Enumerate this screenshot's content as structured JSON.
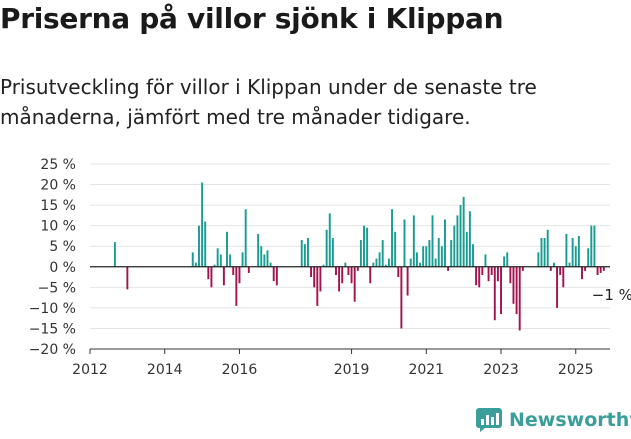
{
  "title": "Priserna på villor sjönk i Klippan",
  "subtitle": "Prisutveckling för villor i Klippan under de senaste tre månaderna, jämfört med tre månader tidigare.",
  "brand": "Newsworthy",
  "colors": {
    "positive": "#1a9c92",
    "negative": "#a3144e",
    "logo": "#3a9e9a"
  },
  "chart_data": {
    "type": "bar",
    "y_unit": "%",
    "ylim": [
      -20,
      25
    ],
    "yticks": [
      25,
      20,
      15,
      10,
      5,
      0,
      -5,
      -10,
      -15,
      -20
    ],
    "ytick_labels": [
      "25 %",
      "20 %",
      "15 %",
      "10 %",
      "5 %",
      "0 %",
      "−5 %",
      "−10 %",
      "−15 %",
      "−20 %"
    ],
    "xlim": [
      "2012-01",
      "2025-12"
    ],
    "xticks": [
      "2012",
      "2014",
      "2016",
      "2019",
      "2021",
      "2023",
      "2025"
    ],
    "annotation": "−1 %",
    "bars": [
      {
        "x": "2012-09",
        "y": 6
      },
      {
        "x": "2013-01",
        "y": -5.5
      },
      {
        "x": "2014-10",
        "y": 3.5
      },
      {
        "x": "2014-11",
        "y": 1
      },
      {
        "x": "2014-12",
        "y": 10
      },
      {
        "x": "2015-01",
        "y": 20.5
      },
      {
        "x": "2015-02",
        "y": 11
      },
      {
        "x": "2015-03",
        "y": -3
      },
      {
        "x": "2015-04",
        "y": -5
      },
      {
        "x": "2015-05",
        "y": 0.5
      },
      {
        "x": "2015-06",
        "y": 4.5
      },
      {
        "x": "2015-07",
        "y": 3
      },
      {
        "x": "2015-08",
        "y": -4.5
      },
      {
        "x": "2015-09",
        "y": 8.5
      },
      {
        "x": "2015-10",
        "y": 3
      },
      {
        "x": "2015-11",
        "y": -2
      },
      {
        "x": "2015-12",
        "y": -9.5
      },
      {
        "x": "2016-01",
        "y": -4
      },
      {
        "x": "2016-02",
        "y": 3.5
      },
      {
        "x": "2016-03",
        "y": 14
      },
      {
        "x": "2016-04",
        "y": -1.5
      },
      {
        "x": "2016-07",
        "y": 8
      },
      {
        "x": "2016-08",
        "y": 5
      },
      {
        "x": "2016-09",
        "y": 3
      },
      {
        "x": "2016-10",
        "y": 4
      },
      {
        "x": "2016-11",
        "y": 1
      },
      {
        "x": "2016-12",
        "y": -3.5
      },
      {
        "x": "2017-01",
        "y": -4.5
      },
      {
        "x": "2017-09",
        "y": 6.5
      },
      {
        "x": "2017-10",
        "y": 5.5
      },
      {
        "x": "2017-11",
        "y": 7
      },
      {
        "x": "2017-12",
        "y": -2.5
      },
      {
        "x": "2018-01",
        "y": -5
      },
      {
        "x": "2018-02",
        "y": -9.5
      },
      {
        "x": "2018-03",
        "y": -6
      },
      {
        "x": "2018-04",
        "y": 0.5
      },
      {
        "x": "2018-05",
        "y": 9
      },
      {
        "x": "2018-06",
        "y": 13
      },
      {
        "x": "2018-07",
        "y": 7
      },
      {
        "x": "2018-08",
        "y": -2
      },
      {
        "x": "2018-09",
        "y": -6
      },
      {
        "x": "2018-10",
        "y": -4
      },
      {
        "x": "2018-11",
        "y": 1
      },
      {
        "x": "2018-12",
        "y": -2
      },
      {
        "x": "2019-01",
        "y": -4
      },
      {
        "x": "2019-02",
        "y": -8.5
      },
      {
        "x": "2019-03",
        "y": -1
      },
      {
        "x": "2019-04",
        "y": 6.5
      },
      {
        "x": "2019-05",
        "y": 10
      },
      {
        "x": "2019-06",
        "y": 9.5
      },
      {
        "x": "2019-07",
        "y": -4
      },
      {
        "x": "2019-08",
        "y": 1
      },
      {
        "x": "2019-09",
        "y": 2
      },
      {
        "x": "2019-10",
        "y": 3.5
      },
      {
        "x": "2019-11",
        "y": 6.5
      },
      {
        "x": "2019-12",
        "y": 0.5
      },
      {
        "x": "2020-01",
        "y": 2
      },
      {
        "x": "2020-02",
        "y": 14
      },
      {
        "x": "2020-03",
        "y": 8.5
      },
      {
        "x": "2020-04",
        "y": -2.5
      },
      {
        "x": "2020-05",
        "y": -15
      },
      {
        "x": "2020-06",
        "y": 11.5
      },
      {
        "x": "2020-07",
        "y": -7
      },
      {
        "x": "2020-08",
        "y": 2
      },
      {
        "x": "2020-09",
        "y": 12.5
      },
      {
        "x": "2020-10",
        "y": 3.5
      },
      {
        "x": "2020-11",
        "y": 1
      },
      {
        "x": "2020-12",
        "y": 5
      },
      {
        "x": "2021-01",
        "y": 5
      },
      {
        "x": "2021-02",
        "y": 6.5
      },
      {
        "x": "2021-03",
        "y": 12.5
      },
      {
        "x": "2021-04",
        "y": 2
      },
      {
        "x": "2021-05",
        "y": 7
      },
      {
        "x": "2021-06",
        "y": 5
      },
      {
        "x": "2021-07",
        "y": 11.5
      },
      {
        "x": "2021-08",
        "y": -1
      },
      {
        "x": "2021-09",
        "y": 6.5
      },
      {
        "x": "2021-10",
        "y": 10
      },
      {
        "x": "2021-11",
        "y": 12.5
      },
      {
        "x": "2021-12",
        "y": 15
      },
      {
        "x": "2022-01",
        "y": 17
      },
      {
        "x": "2022-02",
        "y": 8.5
      },
      {
        "x": "2022-03",
        "y": 13.5
      },
      {
        "x": "2022-04",
        "y": 5.5
      },
      {
        "x": "2022-05",
        "y": -4.5
      },
      {
        "x": "2022-06",
        "y": -5
      },
      {
        "x": "2022-07",
        "y": -2
      },
      {
        "x": "2022-08",
        "y": 3
      },
      {
        "x": "2022-09",
        "y": -3.5
      },
      {
        "x": "2022-10",
        "y": -2
      },
      {
        "x": "2022-11",
        "y": -13
      },
      {
        "x": "2022-12",
        "y": -3.5
      },
      {
        "x": "2023-01",
        "y": -11.5
      },
      {
        "x": "2023-02",
        "y": 2.5
      },
      {
        "x": "2023-03",
        "y": 3.5
      },
      {
        "x": "2023-04",
        "y": -4
      },
      {
        "x": "2023-05",
        "y": -9
      },
      {
        "x": "2023-06",
        "y": -11.5
      },
      {
        "x": "2023-07",
        "y": -15.5
      },
      {
        "x": "2023-08",
        "y": -1
      },
      {
        "x": "2024-01",
        "y": 3.5
      },
      {
        "x": "2024-02",
        "y": 7
      },
      {
        "x": "2024-03",
        "y": 7
      },
      {
        "x": "2024-04",
        "y": 9
      },
      {
        "x": "2024-05",
        "y": -1
      },
      {
        "x": "2024-06",
        "y": 1
      },
      {
        "x": "2024-07",
        "y": -10
      },
      {
        "x": "2024-08",
        "y": -2
      },
      {
        "x": "2024-09",
        "y": -5
      },
      {
        "x": "2024-10",
        "y": 8
      },
      {
        "x": "2024-11",
        "y": 1
      },
      {
        "x": "2024-12",
        "y": 7
      },
      {
        "x": "2025-01",
        "y": 5
      },
      {
        "x": "2025-02",
        "y": 7.5
      },
      {
        "x": "2025-03",
        "y": -3
      },
      {
        "x": "2025-04",
        "y": -1
      },
      {
        "x": "2025-05",
        "y": 4.5
      },
      {
        "x": "2025-06",
        "y": 10
      },
      {
        "x": "2025-07",
        "y": 10
      },
      {
        "x": "2025-08",
        "y": -2
      },
      {
        "x": "2025-09",
        "y": -1.5
      },
      {
        "x": "2025-10",
        "y": -1
      }
    ]
  }
}
